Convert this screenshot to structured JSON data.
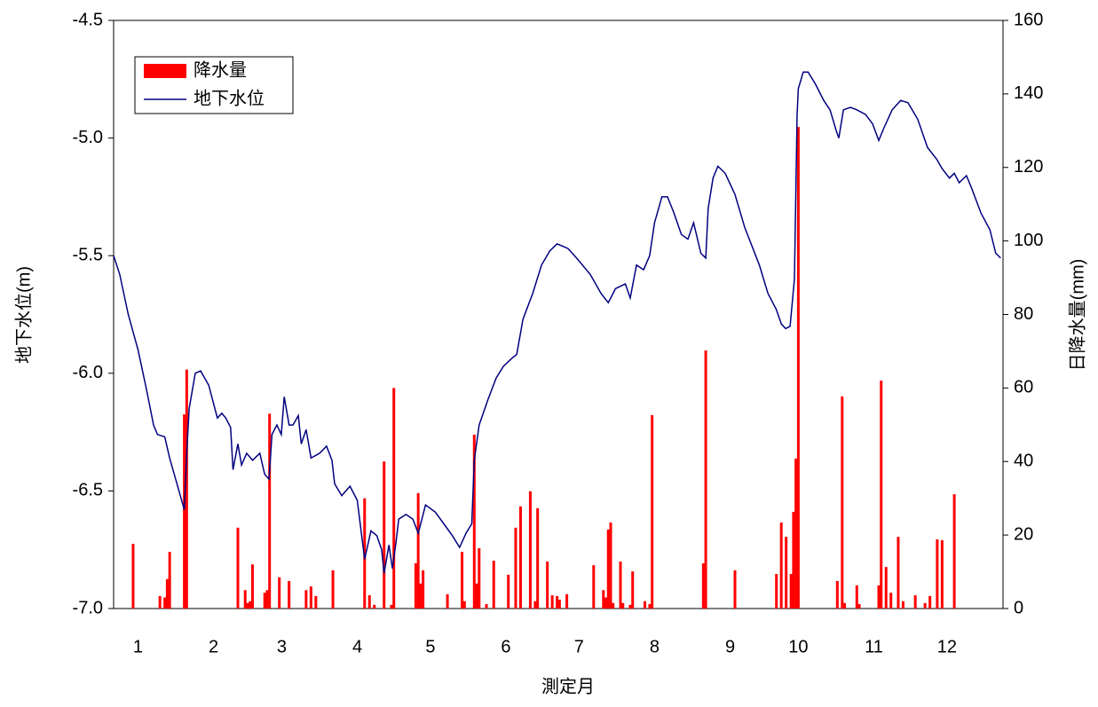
{
  "chart_data": {
    "type": "combo",
    "x_label": "測定月",
    "y_label": "地下水位(m)",
    "y2_label": "日降水量(mm)",
    "xlim": [
      0,
      365
    ],
    "xticks": [
      {
        "value": 10,
        "label": "1"
      },
      {
        "value": 41,
        "label": "2"
      },
      {
        "value": 69,
        "label": "3"
      },
      {
        "value": 100,
        "label": "4"
      },
      {
        "value": 130,
        "label": "5"
      },
      {
        "value": 161,
        "label": "6"
      },
      {
        "value": 191,
        "label": "7"
      },
      {
        "value": 222,
        "label": "8"
      },
      {
        "value": 253,
        "label": "9"
      },
      {
        "value": 281,
        "label": "10"
      },
      {
        "value": 312,
        "label": "11"
      },
      {
        "value": 342,
        "label": "12"
      }
    ],
    "ylim": [
      -7.0,
      -4.5
    ],
    "yticks": [
      {
        "value": -7.0,
        "label": "-7.0"
      },
      {
        "value": -6.5,
        "label": "-6.5"
      },
      {
        "value": -6.0,
        "label": "-6.0"
      },
      {
        "value": -5.5,
        "label": "-5.5"
      },
      {
        "value": -5.0,
        "label": "-5.0"
      },
      {
        "value": -4.5,
        "label": "-4.5"
      }
    ],
    "y2lim": [
      0,
      160
    ],
    "y2ticks": [
      0,
      20,
      40,
      60,
      80,
      100,
      120,
      140,
      160
    ],
    "grid": false,
    "legend": "upper-left",
    "series": [
      {
        "name": "降水量",
        "type": "bar",
        "axis": "y2",
        "color": "#ff0000",
        "x": [
          8,
          19,
          21,
          22,
          23,
          29,
          30,
          51,
          54,
          55,
          56,
          57,
          62,
          63,
          64,
          68,
          72,
          79,
          81,
          83,
          90,
          103,
          105,
          107,
          111,
          114,
          115,
          124,
          125,
          126,
          127,
          137,
          143,
          144,
          148,
          149,
          150,
          153,
          156,
          162,
          165,
          167,
          171,
          173,
          174,
          178,
          180,
          182,
          183,
          186,
          197,
          201,
          202,
          203,
          204,
          205,
          208,
          209,
          212,
          213,
          218,
          220,
          221,
          242,
          243,
          255,
          272,
          274,
          276,
          278,
          279,
          280,
          281,
          297,
          299,
          300,
          305,
          306,
          314,
          315,
          317,
          319,
          322,
          324,
          329,
          333,
          335,
          338,
          340,
          345
        ],
        "values": [
          17.6,
          3.4,
          3,
          8,
          15.4,
          52.8,
          65,
          22,
          5,
          1.5,
          2,
          12,
          4.3,
          5,
          53,
          8.5,
          7.5,
          5,
          6,
          3.4,
          10.4,
          30,
          3.6,
          1,
          40,
          1,
          60,
          12.3,
          31.4,
          6.8,
          10.4,
          3.9,
          15.4,
          2,
          47.3,
          6.8,
          16.4,
          1.2,
          13,
          9.2,
          22,
          27.8,
          31.9,
          2,
          27.3,
          12.8,
          3.6,
          3.4,
          2.4,
          3.9,
          11.8,
          5,
          3,
          21.5,
          23.4,
          1.5,
          12.8,
          1.5,
          1,
          10.1,
          2,
          1.2,
          52.6,
          12.3,
          70.2,
          10.4,
          9.4,
          23.4,
          19.5,
          9.4,
          26.3,
          40.8,
          131,
          7.5,
          57.7,
          1.5,
          6.3,
          1.2,
          6.3,
          62,
          11.3,
          4.3,
          19.5,
          2,
          3.6,
          1.5,
          3.4,
          18.8,
          18.6,
          31.1
        ]
      },
      {
        "name": "地下水位",
        "type": "line",
        "axis": "y",
        "color": "#000080",
        "x": [
          0,
          2.5,
          6,
          10,
          13.5,
          16.4,
          18,
          21,
          23,
          26,
          29,
          30,
          31,
          33.5,
          35.7,
          39,
          42.6,
          44.4,
          46,
          48,
          49,
          51,
          52.5,
          54.6,
          57,
          60,
          62,
          63.8,
          65,
          67,
          68.8,
          70,
          72,
          73.6,
          75.8,
          77,
          79,
          81,
          84.5,
          87.4,
          89.6,
          90.7,
          93.6,
          97,
          100,
          103,
          105.6,
          108,
          110,
          111,
          113,
          114.4,
          116,
          117,
          120,
          122.8,
          125,
          128,
          132,
          135.5,
          139,
          142,
          144.6,
          147,
          148,
          150,
          153.7,
          157,
          160,
          163,
          165.4,
          168,
          172,
          175.6,
          179,
          182,
          186.5,
          190,
          195.6,
          200,
          203,
          206,
          208,
          210,
          212,
          214.6,
          217.5,
          220,
          222,
          225,
          227.3,
          230,
          233,
          235.7,
          238,
          241,
          243,
          244,
          246,
          248,
          251,
          255,
          259,
          265,
          268.5,
          272,
          274,
          275.8,
          277.6,
          279.4,
          280.5,
          281,
          283,
          285,
          288,
          291.4,
          294,
          296.6,
          297.6,
          299.5,
          302.4,
          305,
          308.6,
          311.5,
          314,
          316,
          319.5,
          323,
          326,
          330,
          334,
          337.8,
          340,
          343,
          345,
          347,
          350,
          352,
          356,
          359.6,
          362,
          364
        ],
        "values": [
          -5.5,
          -5.58,
          -5.75,
          -5.9,
          -6.07,
          -6.22,
          -6.26,
          -6.27,
          -6.36,
          -6.47,
          -6.58,
          -6.34,
          -6.15,
          -6.0,
          -5.99,
          -6.05,
          -6.19,
          -6.17,
          -6.19,
          -6.23,
          -6.41,
          -6.3,
          -6.39,
          -6.34,
          -6.37,
          -6.34,
          -6.43,
          -6.45,
          -6.26,
          -6.22,
          -6.26,
          -6.1,
          -6.22,
          -6.22,
          -6.18,
          -6.3,
          -6.24,
          -6.36,
          -6.34,
          -6.31,
          -6.37,
          -6.47,
          -6.52,
          -6.48,
          -6.54,
          -6.79,
          -6.67,
          -6.69,
          -6.75,
          -6.85,
          -6.73,
          -6.83,
          -6.71,
          -6.62,
          -6.6,
          -6.62,
          -6.68,
          -6.56,
          -6.59,
          -6.64,
          -6.69,
          -6.74,
          -6.68,
          -6.64,
          -6.37,
          -6.22,
          -6.11,
          -6.02,
          -5.97,
          -5.94,
          -5.92,
          -5.77,
          -5.66,
          -5.54,
          -5.48,
          -5.45,
          -5.47,
          -5.51,
          -5.58,
          -5.66,
          -5.7,
          -5.64,
          -5.63,
          -5.62,
          -5.68,
          -5.54,
          -5.56,
          -5.5,
          -5.36,
          -5.25,
          -5.25,
          -5.32,
          -5.41,
          -5.43,
          -5.36,
          -5.49,
          -5.51,
          -5.3,
          -5.17,
          -5.12,
          -5.15,
          -5.24,
          -5.38,
          -5.54,
          -5.66,
          -5.73,
          -5.79,
          -5.81,
          -5.8,
          -5.6,
          -4.9,
          -4.79,
          -4.72,
          -4.72,
          -4.77,
          -4.84,
          -4.88,
          -4.97,
          -5.0,
          -4.88,
          -4.87,
          -4.88,
          -4.9,
          -4.94,
          -5.01,
          -4.96,
          -4.88,
          -4.84,
          -4.85,
          -4.92,
          -5.04,
          -5.09,
          -5.13,
          -5.17,
          -5.15,
          -5.19,
          -5.16,
          -5.21,
          -5.32,
          -5.39,
          -5.49,
          -5.51
        ]
      }
    ]
  }
}
